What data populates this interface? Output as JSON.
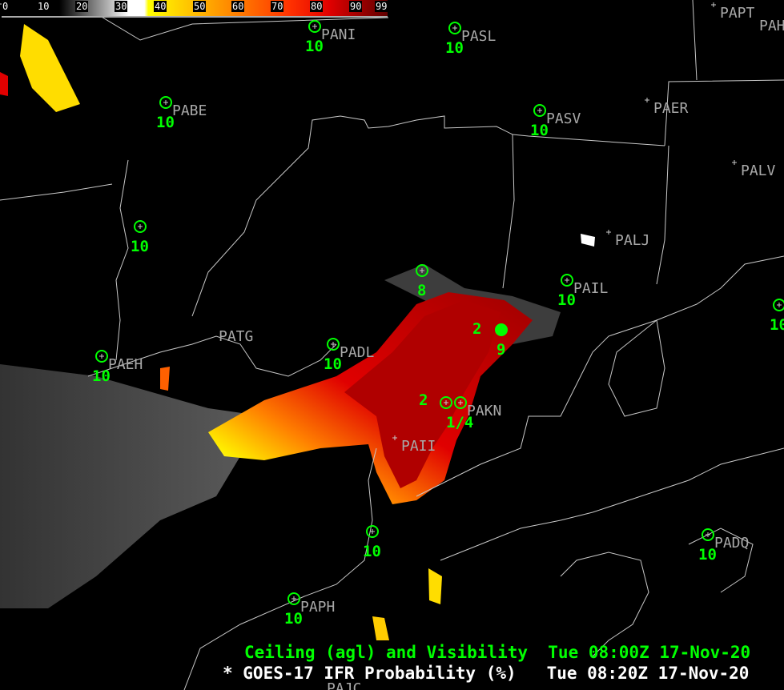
{
  "colorbar": {
    "ticks": [
      "0",
      "10",
      "20",
      "30",
      "40",
      "50",
      "60",
      "70",
      "80",
      "90",
      "99"
    ],
    "colors": [
      "#000000",
      "#ffffff",
      "#ffff00",
      "#ffa000",
      "#ff3000",
      "#e00000",
      "#600000"
    ]
  },
  "stations": [
    {
      "id": "PANI",
      "vis": "10"
    },
    {
      "id": "PASL",
      "vis": "10"
    },
    {
      "id": "PABE",
      "vis": "10"
    },
    {
      "id": "PASV",
      "vis": "10"
    },
    {
      "id": "PAER",
      "vis": ""
    },
    {
      "id": "PAPT",
      "vis": ""
    },
    {
      "id": "PAH",
      "vis": ""
    },
    {
      "id": "PALV",
      "vis": ""
    },
    {
      "id": "PALJ",
      "vis": ""
    },
    {
      "id": "PAIL",
      "vis": "10"
    },
    {
      "id": "PATG",
      "vis": ""
    },
    {
      "id": "PAEH",
      "vis": "10"
    },
    {
      "id": "PADL",
      "vis": "10"
    },
    {
      "id": "PAKN",
      "ceiling": "2",
      "vis": "1/4"
    },
    {
      "id": "PAII",
      "vis": ""
    },
    {
      "id": "PADQ",
      "vis": "10"
    },
    {
      "id": "PAPH",
      "vis": "10"
    },
    {
      "id": "PAJC",
      "vis": ""
    }
  ],
  "unnamed_obs": [
    {
      "vis": "10"
    },
    {
      "vis": "8"
    },
    {
      "ceiling": "2",
      "vis": "9"
    },
    {
      "vis": "10"
    },
    {
      "vis": "10"
    }
  ],
  "title": {
    "line1": "Ceiling (agl) and Visibility  Tue 08:00Z 17-Nov-20",
    "line2": "* GOES-17 IFR Probability (%)   Tue 08:20Z 17-Nov-20",
    "line1_color": "#00ff00",
    "line2_color": "#ffffff"
  }
}
